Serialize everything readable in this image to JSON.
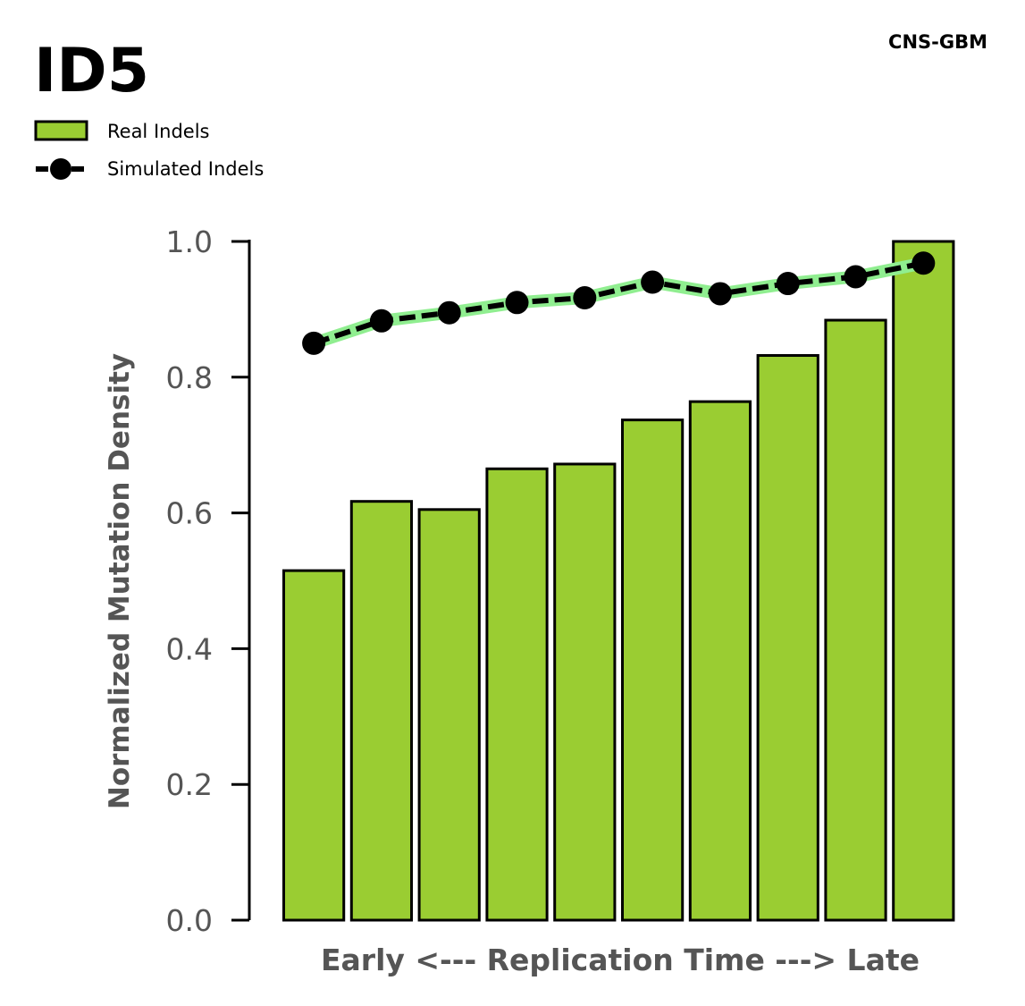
{
  "chart_data": {
    "type": "bar",
    "title": "ID5",
    "subtitle": "CNS-GBM",
    "xlabel": "Early <--- Replication Time ---> Late",
    "ylabel": "Normalized Mutation Density",
    "ylim": [
      0.0,
      1.0
    ],
    "yticks": [
      "0.0",
      "0.2",
      "0.4",
      "0.6",
      "0.8",
      "1.0"
    ],
    "ytick_values": [
      0.0,
      0.2,
      0.4,
      0.6,
      0.8,
      1.0
    ],
    "legend_position": "top-left",
    "grid": false,
    "series": [
      {
        "name": "Real Indels",
        "kind": "bar",
        "color": "#9acd32",
        "values": [
          0.515,
          0.617,
          0.605,
          0.665,
          0.672,
          0.737,
          0.764,
          0.832,
          0.884,
          1.0
        ]
      },
      {
        "name": "Simulated Indels",
        "kind": "line",
        "color": "#000000",
        "band_color": "#90ee90",
        "values": [
          0.85,
          0.883,
          0.895,
          0.91,
          0.917,
          0.94,
          0.923,
          0.938,
          0.948,
          0.968
        ]
      }
    ]
  }
}
